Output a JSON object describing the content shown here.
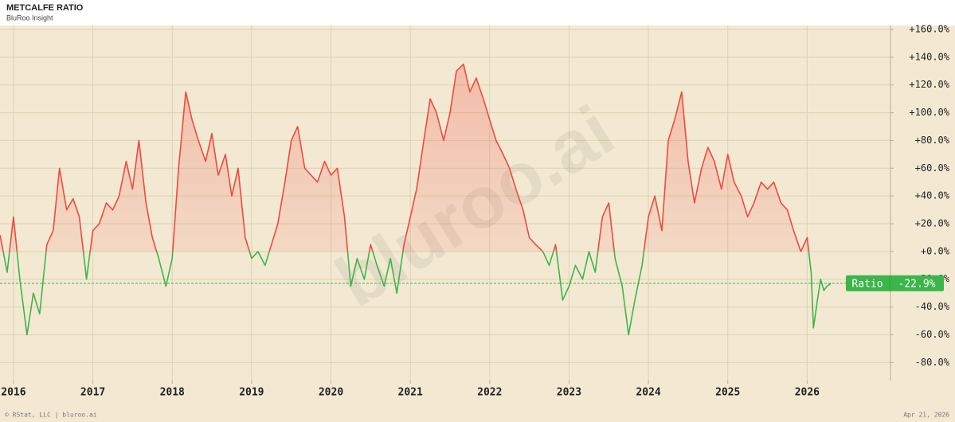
{
  "chart_data": {
    "type": "line",
    "title": "METCALFE RATIO",
    "subtitle": "BluRoo Insight",
    "footer": "© RStat, LLC  |  bluroo.ai",
    "date": "Apr 21, 2026",
    "watermark": "bluroo.ai",
    "grid": true,
    "xlim": [
      2015.83,
      2027.05
    ],
    "xticks": [
      2016,
      2017,
      2018,
      2019,
      2020,
      2021,
      2022,
      2023,
      2024,
      2025,
      2026
    ],
    "ylim": [
      -93,
      164
    ],
    "yticks": [
      {
        "value": 160,
        "label": "+160.0%"
      },
      {
        "value": 140,
        "label": "+140.0%"
      },
      {
        "value": 120,
        "label": "+120.0%"
      },
      {
        "value": 100,
        "label": "+100.0%"
      },
      {
        "value": 80,
        "label": "+80.0%"
      },
      {
        "value": 60,
        "label": "+60.0%"
      },
      {
        "value": 40,
        "label": "+40.0%"
      },
      {
        "value": 20,
        "label": "+20.0%"
      },
      {
        "value": 0,
        "label": "+0.0%"
      },
      {
        "value": -20,
        "label": "-20.0%"
      },
      {
        "value": -40,
        "label": "-40.0%"
      },
      {
        "value": -60,
        "label": "-60.0%"
      },
      {
        "value": -80,
        "label": "-80.0%"
      }
    ],
    "current": {
      "value": -22.9,
      "label": "-22.9%"
    },
    "x": [
      2015.83,
      2015.92,
      2016.0,
      2016.08,
      2016.17,
      2016.25,
      2016.33,
      2016.42,
      2016.5,
      2016.58,
      2016.67,
      2016.75,
      2016.83,
      2016.92,
      2017.0,
      2017.08,
      2017.17,
      2017.25,
      2017.33,
      2017.42,
      2017.5,
      2017.58,
      2017.67,
      2017.75,
      2017.83,
      2017.92,
      2018.0,
      2018.08,
      2018.17,
      2018.25,
      2018.33,
      2018.42,
      2018.5,
      2018.58,
      2018.67,
      2018.75,
      2018.83,
      2018.92,
      2019.0,
      2019.08,
      2019.17,
      2019.25,
      2019.33,
      2019.42,
      2019.5,
      2019.58,
      2019.67,
      2019.75,
      2019.83,
      2019.92,
      2020.0,
      2020.08,
      2020.17,
      2020.25,
      2020.33,
      2020.42,
      2020.5,
      2020.58,
      2020.67,
      2020.75,
      2020.83,
      2020.92,
      2021.0,
      2021.08,
      2021.17,
      2021.25,
      2021.33,
      2021.42,
      2021.5,
      2021.58,
      2021.67,
      2021.75,
      2021.83,
      2021.92,
      2022.0,
      2022.08,
      2022.17,
      2022.25,
      2022.33,
      2022.42,
      2022.5,
      2022.58,
      2022.67,
      2022.75,
      2022.83,
      2022.92,
      2023.0,
      2023.08,
      2023.17,
      2023.25,
      2023.33,
      2023.42,
      2023.5,
      2023.58,
      2023.67,
      2023.75,
      2023.83,
      2023.92,
      2024.0,
      2024.08,
      2024.17,
      2024.25,
      2024.33,
      2024.42,
      2024.5,
      2024.58,
      2024.67,
      2024.75,
      2024.83,
      2024.92,
      2025.0,
      2025.08,
      2025.17,
      2025.25,
      2025.33,
      2025.42,
      2025.5,
      2025.58,
      2025.67,
      2025.75,
      2025.83,
      2025.92,
      2026.0,
      2026.05,
      2026.08,
      2026.13,
      2026.17,
      2026.21,
      2026.25,
      2026.3
    ],
    "series": [
      {
        "name": "Ratio",
        "color": "#ee4a3e",
        "negative_color": "#3cb54b",
        "values": [
          12,
          -15,
          25,
          -20,
          -60,
          -30,
          -45,
          5,
          15,
          60,
          30,
          38,
          25,
          -20,
          15,
          20,
          35,
          30,
          40,
          65,
          45,
          80,
          35,
          10,
          -5,
          -25,
          -5,
          60,
          115,
          95,
          80,
          65,
          85,
          55,
          70,
          40,
          60,
          10,
          -5,
          0,
          -10,
          5,
          20,
          50,
          80,
          90,
          60,
          55,
          50,
          65,
          55,
          60,
          25,
          -25,
          -5,
          -20,
          5,
          -10,
          -25,
          -5,
          -30,
          5,
          25,
          45,
          80,
          110,
          100,
          80,
          100,
          130,
          135,
          115,
          125,
          110,
          95,
          80,
          70,
          60,
          45,
          30,
          10,
          5,
          0,
          -10,
          5,
          -35,
          -25,
          -10,
          -20,
          0,
          -15,
          25,
          35,
          -5,
          -25,
          -60,
          -35,
          -10,
          25,
          40,
          15,
          80,
          95,
          115,
          65,
          35,
          60,
          75,
          65,
          45,
          70,
          50,
          40,
          25,
          35,
          50,
          45,
          50,
          35,
          30,
          15,
          0,
          10,
          -15,
          -55,
          -35,
          -20,
          -28,
          -25,
          -22.9
        ]
      }
    ]
  }
}
